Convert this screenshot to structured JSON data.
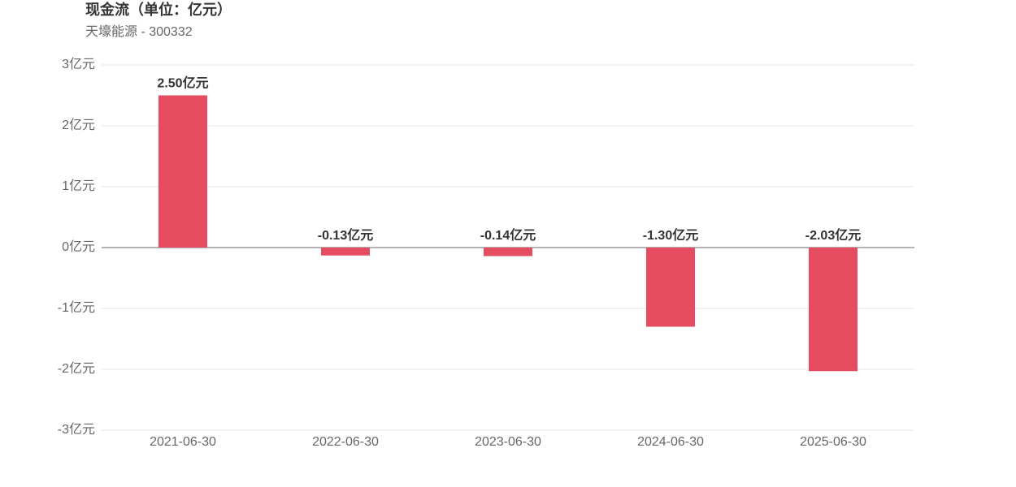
{
  "chart_data": {
    "type": "bar",
    "title": "现金流（单位：亿元）",
    "subtitle": "天壕能源 - 300332",
    "categories": [
      "2021-06-30",
      "2022-06-30",
      "2023-06-30",
      "2024-06-30",
      "2025-06-30"
    ],
    "values": [
      2.5,
      -0.13,
      -0.14,
      -1.3,
      -2.03
    ],
    "value_labels": [
      "2.50亿元",
      "-0.13亿元",
      "-0.14亿元",
      "-1.30亿元",
      "-2.03亿元"
    ],
    "color": "#e64c5f",
    "ylim": [
      -3,
      3
    ],
    "yticks": [
      {
        "value": 3,
        "label": "3亿元"
      },
      {
        "value": 2,
        "label": "2亿元"
      },
      {
        "value": 1,
        "label": "1亿元"
      },
      {
        "value": 0,
        "label": "0亿元"
      },
      {
        "value": -1,
        "label": "-1亿元"
      },
      {
        "value": -2,
        "label": "-2亿元"
      },
      {
        "value": -3,
        "label": "-3亿元"
      }
    ],
    "grid": true
  }
}
